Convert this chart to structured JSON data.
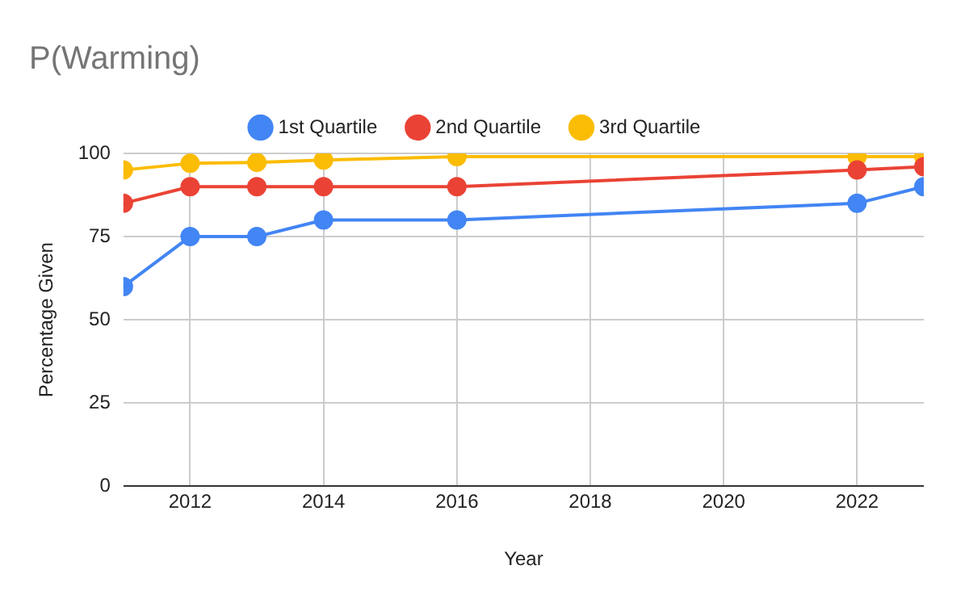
{
  "chart_data": {
    "type": "line",
    "title": "P(Warming)",
    "xlabel": "Year",
    "ylabel": "Percentage Given",
    "x": [
      2011,
      2012,
      2013,
      2014,
      2016,
      2022,
      2023
    ],
    "series": [
      {
        "name": "1st Quartile",
        "color": "#4285f4",
        "values": [
          60,
          75,
          75,
          80,
          80,
          85,
          90
        ]
      },
      {
        "name": "2nd Quartile",
        "color": "#ea4335",
        "values": [
          85,
          90,
          90,
          90,
          90,
          95,
          96
        ]
      },
      {
        "name": "3rd Quartile",
        "color": "#fbbc04",
        "values": [
          95,
          97,
          97.3,
          98,
          99,
          99,
          99
        ]
      }
    ],
    "xlim": [
      2011,
      2023
    ],
    "xticks": [
      2012,
      2014,
      2016,
      2018,
      2020,
      2022
    ],
    "ylim": [
      0,
      100
    ],
    "yticks": [
      0,
      25,
      50,
      75,
      100
    ],
    "grid": true,
    "legend": "top",
    "marker": "circle",
    "line_style": "solid"
  }
}
